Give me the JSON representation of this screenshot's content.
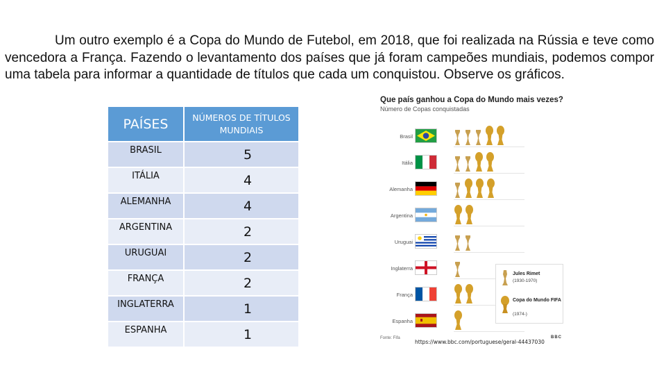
{
  "paragraph": "Um outro exemplo é a Copa do Mundo de Futebol, em 2018, que foi realizada na Rússia e teve como vencedora a França. Fazendo o levantamento dos países que já foram campeões mundiais, podemos compor uma tabela para informar a quantidade de títulos que cada um conquistou. Observe os gráficos.",
  "table": {
    "header_country": "PAÍSES",
    "header_titles": "NÚMEROS DE TÍTULOS MUNDIAIS",
    "rows": [
      {
        "country": "BRASIL",
        "titles": "5"
      },
      {
        "country": "ITÁLIA",
        "titles": "4"
      },
      {
        "country": "ALEMANHA",
        "titles": "4"
      },
      {
        "country": "ARGENTINA",
        "titles": "2"
      },
      {
        "country": "URUGUAI",
        "titles": "2"
      },
      {
        "country": "FRANÇA",
        "titles": "2"
      },
      {
        "country": "INGLATERRA",
        "titles": "1"
      },
      {
        "country": "ESPANHA",
        "titles": "1"
      }
    ]
  },
  "infographic": {
    "title": "Que país ganhou a Copa do Mundo mais vezes?",
    "subtitle": "Número de Copas conquistadas",
    "countries": [
      {
        "name": "Brasil",
        "flag": "brazil",
        "jules_rimet": 3,
        "fifa": 2
      },
      {
        "name": "Itália",
        "flag": "italy",
        "jules_rimet": 2,
        "fifa": 2
      },
      {
        "name": "Alemanha",
        "flag": "germany",
        "jules_rimet": 1,
        "fifa": 3
      },
      {
        "name": "Argentina",
        "flag": "argentina",
        "jules_rimet": 0,
        "fifa": 2
      },
      {
        "name": "Uruguai",
        "flag": "uruguay",
        "jules_rimet": 2,
        "fifa": 0
      },
      {
        "name": "Inglaterra",
        "flag": "england",
        "jules_rimet": 1,
        "fifa": 0
      },
      {
        "name": "França",
        "flag": "france",
        "jules_rimet": 0,
        "fifa": 2
      },
      {
        "name": "Espanha",
        "flag": "spain",
        "jules_rimet": 0,
        "fifa": 1
      }
    ],
    "legend": {
      "jules_rimet_title": "Jules Rimet",
      "jules_rimet_years": "(1930-1970)",
      "fifa_title": "Copa do Mundo FIFA",
      "fifa_years": "(1974-)"
    },
    "footer": "Fonte: Fifa",
    "brand": "BBC",
    "colors": {
      "jules_rimet": "#c8a050",
      "fifa": "#d4a02a"
    }
  },
  "source_url": "https://www.bbc.com/portuguese/geral-44437030"
}
